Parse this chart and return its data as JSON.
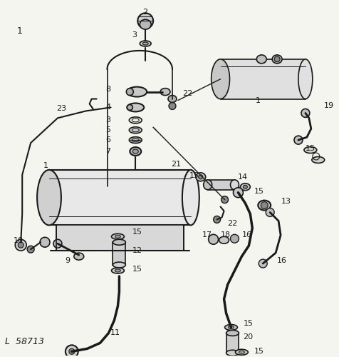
{
  "background_color": "#f5f5f0",
  "line_color": "#1a1a1a",
  "text_color": "#1a1a1a",
  "figsize": [
    4.76,
    5.0
  ],
  "dpi": 100
}
